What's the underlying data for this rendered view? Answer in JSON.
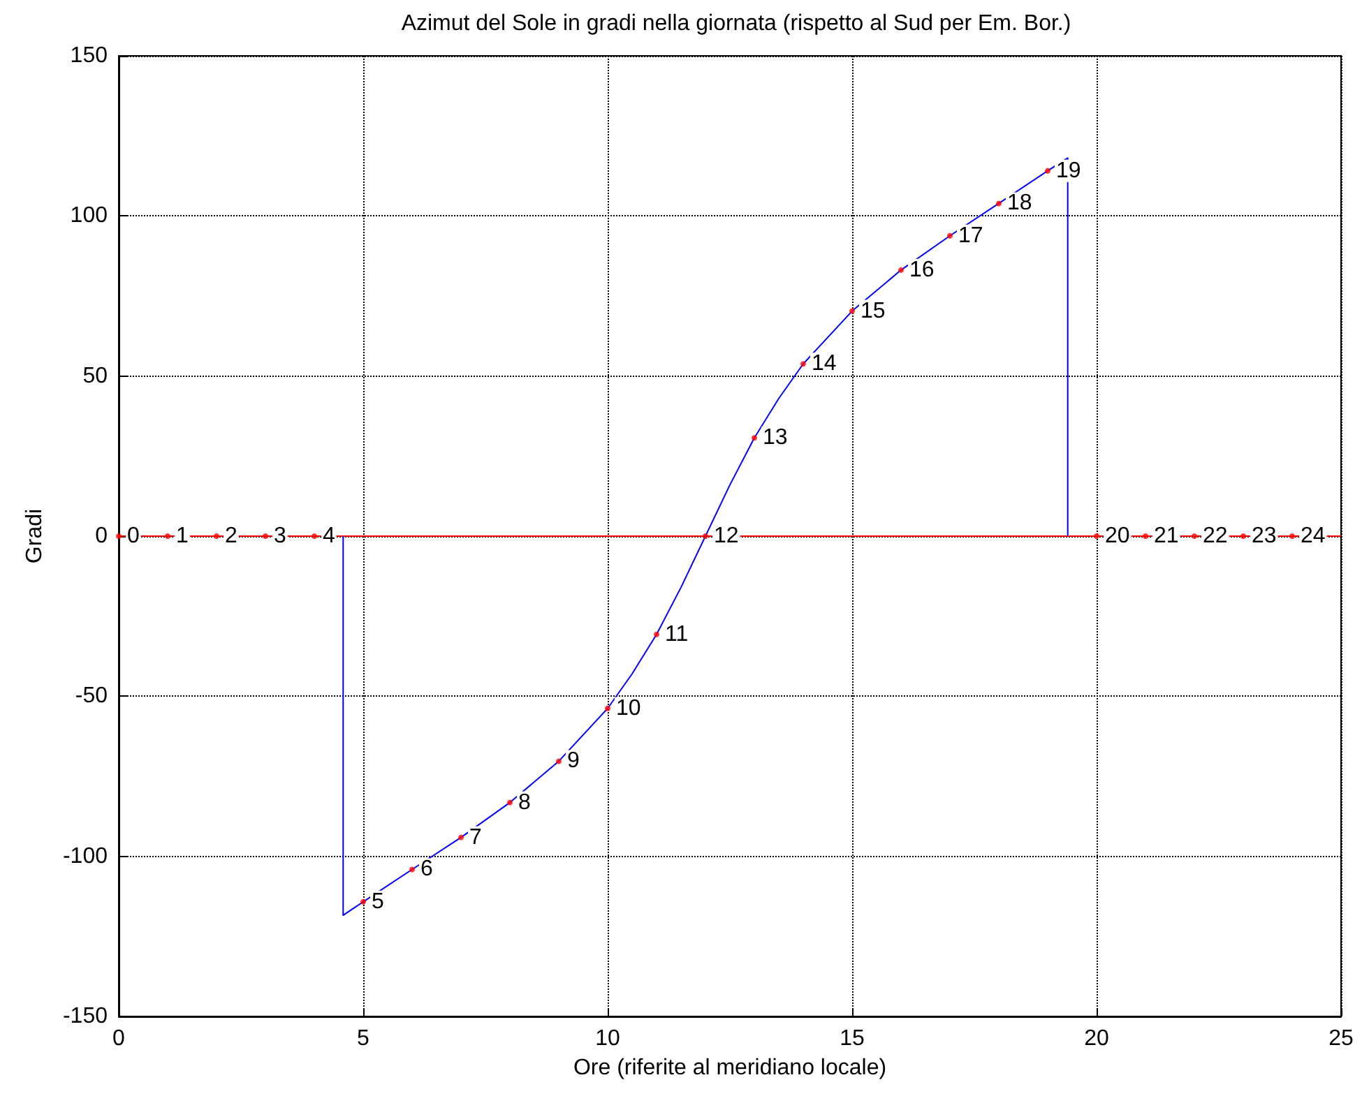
{
  "chart_data": {
    "type": "line",
    "title": "Azimut del Sole in gradi nella giornata (rispetto al Sud per Em. Bor.)",
    "xlabel": "Ore (riferite al meridiano locale)",
    "ylabel": "Gradi",
    "xlim": [
      0,
      25
    ],
    "xticks": [
      0,
      5,
      10,
      15,
      20,
      25
    ],
    "ylim": [
      -150,
      150
    ],
    "yticks": [
      -150,
      -100,
      -50,
      0,
      50,
      100,
      150
    ],
    "grid": true,
    "series": [
      {
        "color": "#ff0000",
        "marker": "none",
        "x": [
          0,
          25
        ],
        "values": [
          0,
          0
        ]
      },
      {
        "color": "#0000ff",
        "marker": "none",
        "x": [
          4.59,
          4.59,
          5,
          6,
          7,
          8,
          9,
          10,
          10.5,
          11,
          11.5,
          12,
          12.5,
          13,
          13.5,
          14,
          15,
          16,
          17,
          18,
          19,
          19.41,
          19.41
        ],
        "values": [
          0,
          -118.4,
          -114.2,
          -104.1,
          -94.1,
          -83.2,
          -70.3,
          -53.8,
          -43,
          -30.7,
          -16,
          0,
          16,
          30.7,
          43,
          53.8,
          70.3,
          83.1,
          93.8,
          103.9,
          114.1,
          118.1,
          0
        ]
      },
      {
        "type": "scatter",
        "color": "#ff0000",
        "marker": "circle",
        "x": [
          0,
          1,
          2,
          3,
          4,
          5,
          6,
          7,
          8,
          9,
          10,
          11,
          12,
          13,
          14,
          15,
          16,
          17,
          18,
          19,
          20,
          21,
          22,
          23,
          24
        ],
        "values": [
          0,
          0,
          0,
          0,
          0,
          -114.2,
          -104.1,
          -94.1,
          -83.2,
          -70.3,
          -53.8,
          -30.7,
          0,
          30.7,
          53.8,
          70.3,
          83.1,
          93.8,
          103.9,
          114.1,
          0,
          0,
          0,
          0,
          0
        ]
      }
    ],
    "annotations": [
      {
        "text": "0",
        "x": 0,
        "y": 0
      },
      {
        "text": "1",
        "x": 1,
        "y": 0
      },
      {
        "text": "2",
        "x": 2,
        "y": 0
      },
      {
        "text": "3",
        "x": 3,
        "y": 0
      },
      {
        "text": "4",
        "x": 4,
        "y": 0
      },
      {
        "text": "5",
        "x": 5,
        "y": -114.2
      },
      {
        "text": "6",
        "x": 6,
        "y": -104.1
      },
      {
        "text": "7",
        "x": 7,
        "y": -94.1
      },
      {
        "text": "8",
        "x": 8,
        "y": -83.2
      },
      {
        "text": "9",
        "x": 9,
        "y": -70.3
      },
      {
        "text": "10",
        "x": 10,
        "y": -53.8
      },
      {
        "text": "11",
        "x": 11,
        "y": -30.7
      },
      {
        "text": "12",
        "x": 12,
        "y": 0
      },
      {
        "text": "13",
        "x": 13,
        "y": 30.7
      },
      {
        "text": "14",
        "x": 14,
        "y": 53.8
      },
      {
        "text": "15",
        "x": 15,
        "y": 70.3
      },
      {
        "text": "16",
        "x": 16,
        "y": 83.1
      },
      {
        "text": "17",
        "x": 17,
        "y": 93.8
      },
      {
        "text": "18",
        "x": 18,
        "y": 103.9
      },
      {
        "text": "19",
        "x": 19,
        "y": 114.1
      },
      {
        "text": "20",
        "x": 20,
        "y": 0
      },
      {
        "text": "21",
        "x": 21,
        "y": 0
      },
      {
        "text": "22",
        "x": 22,
        "y": 0
      },
      {
        "text": "23",
        "x": 23,
        "y": 0
      },
      {
        "text": "24",
        "x": 24,
        "y": 0
      }
    ]
  }
}
